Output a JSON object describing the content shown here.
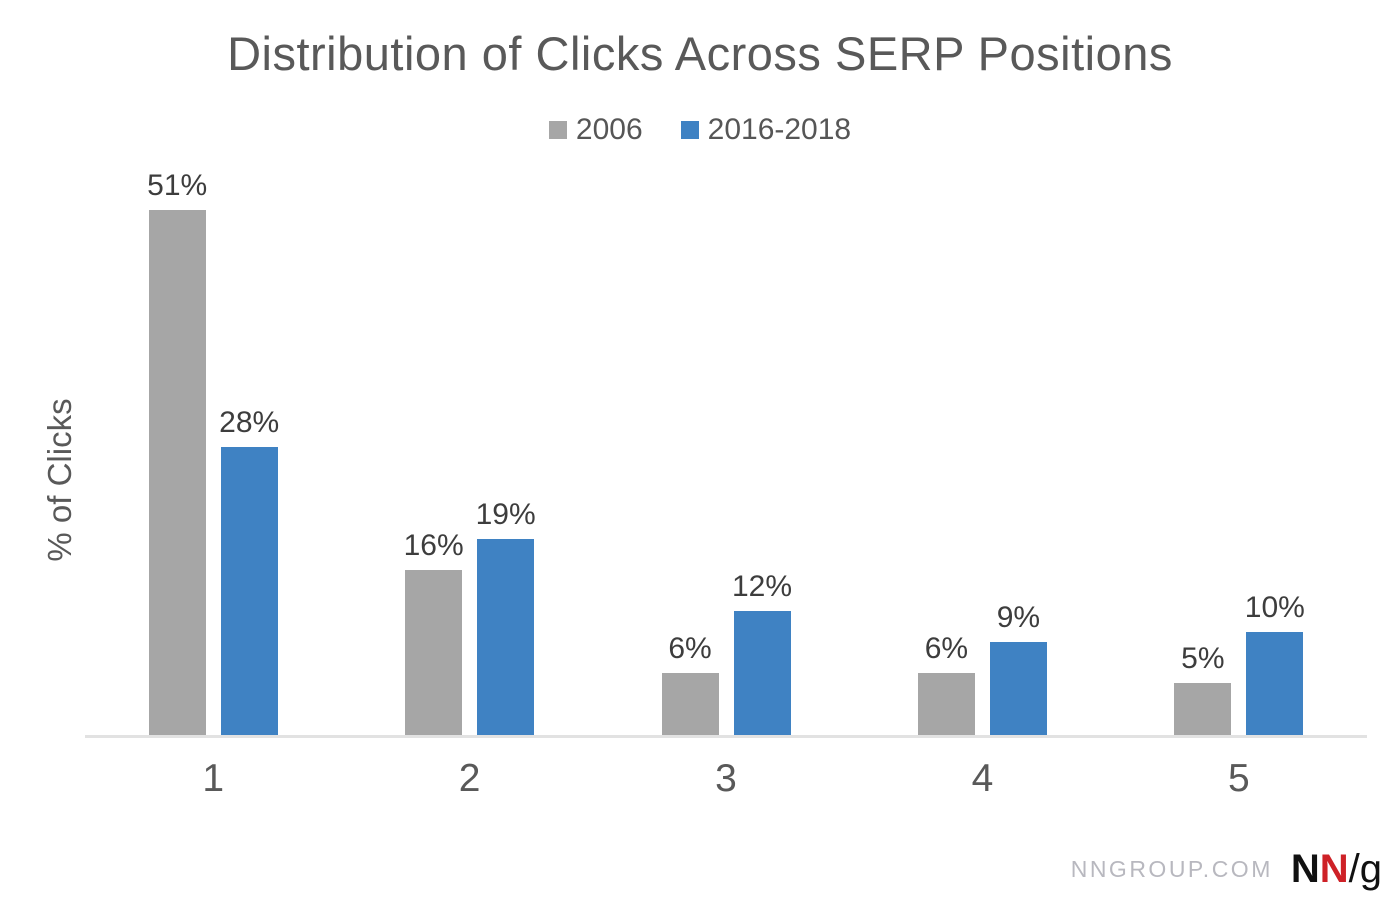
{
  "title": "Distribution of Clicks Across SERP Positions",
  "ylabel": "% of Clicks",
  "colors": {
    "series_2006": "#a6a6a6",
    "series_2016_2018": "#3f82c3",
    "title_text": "#595959",
    "data_label_text": "#3d3d3d",
    "axis_line": "#e2e2e2",
    "site_credit_text": "#b8b8bf",
    "logo_black": "#111111",
    "logo_red": "#ce2127"
  },
  "footer": {
    "site": "NNGROUP.COM",
    "logo_n1": "N",
    "logo_n2": "N",
    "logo_slash_g": "/g"
  },
  "chart_data": {
    "type": "bar",
    "categories": [
      "1",
      "2",
      "3",
      "4",
      "5"
    ],
    "series": [
      {
        "name": "2006",
        "color": "#a6a6a6",
        "values": [
          51,
          16,
          6,
          6,
          5
        ]
      },
      {
        "name": "2016-2018",
        "color": "#3f82c3",
        "values": [
          28,
          19,
          12,
          9,
          10
        ]
      }
    ],
    "data_labels": {
      "2006": [
        "51%",
        "16%",
        "6%",
        "6%",
        "5%"
      ],
      "2016-2018": [
        "28%",
        "19%",
        "12%",
        "9%",
        "10%"
      ]
    },
    "title": "Distribution of Clicks Across SERP Positions",
    "xlabel": "",
    "ylabel": "% of Clicks",
    "ylim": [
      0,
      55
    ],
    "grid": false,
    "legend_position": "top-center",
    "value_unit": "%"
  }
}
